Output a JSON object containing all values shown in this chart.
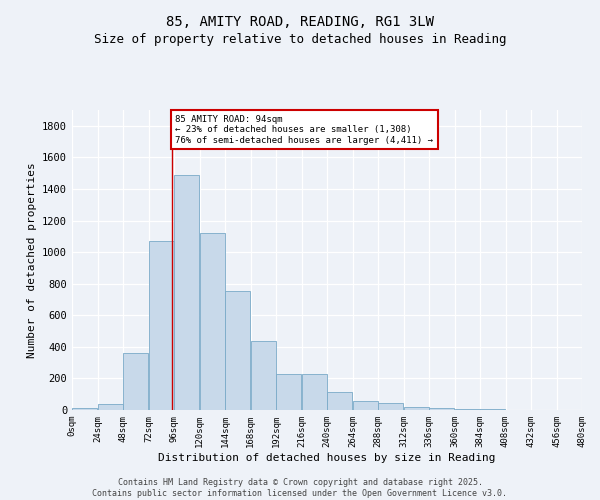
{
  "title": "85, AMITY ROAD, READING, RG1 3LW",
  "subtitle": "Size of property relative to detached houses in Reading",
  "xlabel": "Distribution of detached houses by size in Reading",
  "ylabel": "Number of detached properties",
  "bar_color": "#c8d9ea",
  "bar_edge_color": "#7aaac8",
  "background_color": "#eef2f8",
  "grid_color": "#ffffff",
  "annotation_line_color": "#cc0000",
  "annotation_box_color": "#cc0000",
  "annotation_text": "85 AMITY ROAD: 94sqm\n← 23% of detached houses are smaller (1,308)\n76% of semi-detached houses are larger (4,411) →",
  "property_size": 94,
  "bins": [
    0,
    24,
    48,
    72,
    96,
    120,
    144,
    168,
    192,
    216,
    240,
    264,
    288,
    312,
    336,
    360,
    384,
    408,
    432,
    456,
    480
  ],
  "bin_labels": [
    "0sqm",
    "24sqm",
    "48sqm",
    "72sqm",
    "96sqm",
    "120sqm",
    "144sqm",
    "168sqm",
    "192sqm",
    "216sqm",
    "240sqm",
    "264sqm",
    "288sqm",
    "312sqm",
    "336sqm",
    "360sqm",
    "384sqm",
    "408sqm",
    "432sqm",
    "456sqm",
    "480sqm"
  ],
  "counts": [
    10,
    35,
    360,
    1070,
    1490,
    1120,
    755,
    440,
    225,
    225,
    115,
    55,
    45,
    20,
    10,
    5,
    5,
    2,
    1,
    0
  ],
  "ylim": [
    0,
    1900
  ],
  "yticks": [
    0,
    200,
    400,
    600,
    800,
    1000,
    1200,
    1400,
    1600,
    1800
  ],
  "footer": "Contains HM Land Registry data © Crown copyright and database right 2025.\nContains public sector information licensed under the Open Government Licence v3.0.",
  "title_fontsize": 10,
  "subtitle_fontsize": 9,
  "axis_label_fontsize": 8,
  "tick_fontsize": 6.5,
  "annotation_fontsize": 6.5,
  "footer_fontsize": 6
}
